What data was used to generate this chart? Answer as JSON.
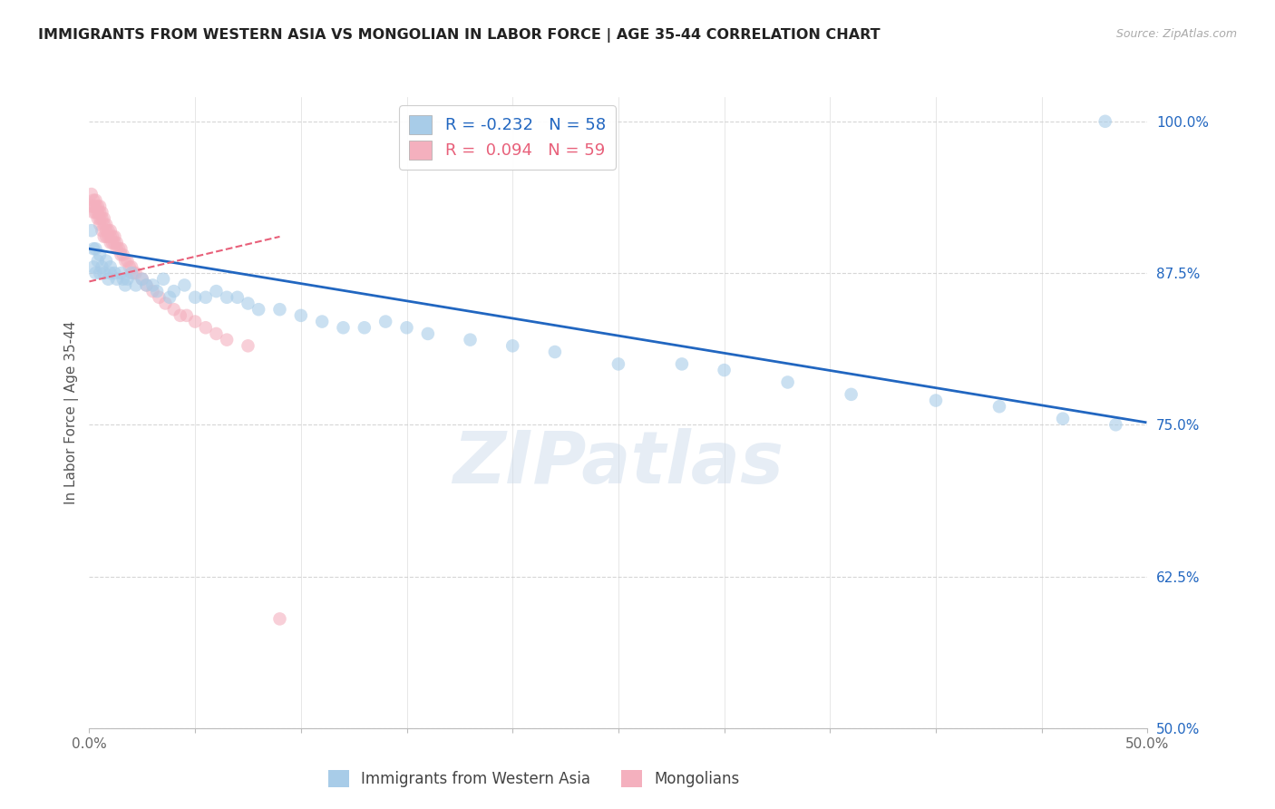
{
  "title": "IMMIGRANTS FROM WESTERN ASIA VS MONGOLIAN IN LABOR FORCE | AGE 35-44 CORRELATION CHART",
  "source": "Source: ZipAtlas.com",
  "ylabel": "In Labor Force | Age 35-44",
  "xlim": [
    0.0,
    0.5
  ],
  "ylim": [
    0.5,
    1.02
  ],
  "yticks": [
    0.5,
    0.625,
    0.75,
    0.875,
    1.0
  ],
  "ytick_labels": [
    "50.0%",
    "62.5%",
    "75.0%",
    "87.5%",
    "100.0%"
  ],
  "xticks": [
    0.0,
    0.05,
    0.1,
    0.15,
    0.2,
    0.25,
    0.3,
    0.35,
    0.4,
    0.45,
    0.5
  ],
  "xtick_labels": [
    "0.0%",
    "",
    "",
    "",
    "",
    "",
    "",
    "",
    "",
    "",
    "50.0%"
  ],
  "blue_R": -0.232,
  "blue_N": 58,
  "pink_R": 0.094,
  "pink_N": 59,
  "blue_color": "#a8cce8",
  "pink_color": "#f4b0be",
  "blue_line_color": "#2166c0",
  "pink_line_color": "#e8607a",
  "legend_label_blue": "Immigrants from Western Asia",
  "legend_label_pink": "Mongolians",
  "watermark": "ZIPatlas",
  "blue_scatter_x": [
    0.001,
    0.002,
    0.002,
    0.003,
    0.003,
    0.004,
    0.005,
    0.005,
    0.006,
    0.007,
    0.008,
    0.009,
    0.01,
    0.01,
    0.012,
    0.013,
    0.015,
    0.016,
    0.017,
    0.018,
    0.02,
    0.022,
    0.025,
    0.027,
    0.03,
    0.032,
    0.035,
    0.038,
    0.04,
    0.045,
    0.05,
    0.055,
    0.06,
    0.065,
    0.07,
    0.075,
    0.08,
    0.09,
    0.1,
    0.11,
    0.12,
    0.13,
    0.14,
    0.15,
    0.16,
    0.18,
    0.2,
    0.22,
    0.25,
    0.28,
    0.3,
    0.33,
    0.36,
    0.4,
    0.43,
    0.46,
    0.485,
    0.48
  ],
  "blue_scatter_y": [
    0.91,
    0.895,
    0.88,
    0.895,
    0.875,
    0.885,
    0.89,
    0.875,
    0.88,
    0.875,
    0.885,
    0.87,
    0.88,
    0.875,
    0.875,
    0.87,
    0.875,
    0.87,
    0.865,
    0.87,
    0.875,
    0.865,
    0.87,
    0.865,
    0.865,
    0.86,
    0.87,
    0.855,
    0.86,
    0.865,
    0.855,
    0.855,
    0.86,
    0.855,
    0.855,
    0.85,
    0.845,
    0.845,
    0.84,
    0.835,
    0.83,
    0.83,
    0.835,
    0.83,
    0.825,
    0.82,
    0.815,
    0.81,
    0.8,
    0.8,
    0.795,
    0.785,
    0.775,
    0.77,
    0.765,
    0.755,
    0.75,
    1.0
  ],
  "pink_scatter_x": [
    0.001,
    0.001,
    0.002,
    0.002,
    0.002,
    0.003,
    0.003,
    0.003,
    0.004,
    0.004,
    0.004,
    0.005,
    0.005,
    0.005,
    0.005,
    0.006,
    0.006,
    0.006,
    0.007,
    0.007,
    0.007,
    0.008,
    0.008,
    0.008,
    0.009,
    0.009,
    0.01,
    0.01,
    0.01,
    0.011,
    0.011,
    0.012,
    0.012,
    0.013,
    0.013,
    0.014,
    0.015,
    0.015,
    0.016,
    0.017,
    0.018,
    0.019,
    0.02,
    0.021,
    0.022,
    0.025,
    0.027,
    0.03,
    0.033,
    0.036,
    0.04,
    0.043,
    0.046,
    0.05,
    0.055,
    0.06,
    0.065,
    0.075,
    0.09
  ],
  "pink_scatter_y": [
    0.94,
    0.93,
    0.935,
    0.93,
    0.925,
    0.935,
    0.93,
    0.925,
    0.93,
    0.925,
    0.92,
    0.93,
    0.925,
    0.92,
    0.915,
    0.925,
    0.92,
    0.91,
    0.92,
    0.915,
    0.905,
    0.915,
    0.91,
    0.905,
    0.91,
    0.905,
    0.91,
    0.905,
    0.9,
    0.905,
    0.9,
    0.905,
    0.9,
    0.9,
    0.895,
    0.895,
    0.895,
    0.89,
    0.89,
    0.885,
    0.885,
    0.88,
    0.88,
    0.875,
    0.875,
    0.87,
    0.865,
    0.86,
    0.855,
    0.85,
    0.845,
    0.84,
    0.84,
    0.835,
    0.83,
    0.825,
    0.82,
    0.815,
    0.59
  ],
  "blue_line_x0": 0.0,
  "blue_line_x1": 0.499,
  "blue_line_y0": 0.895,
  "blue_line_y1": 0.752,
  "pink_line_x0": 0.0,
  "pink_line_x1": 0.09,
  "pink_line_y0": 0.868,
  "pink_line_y1": 0.905
}
